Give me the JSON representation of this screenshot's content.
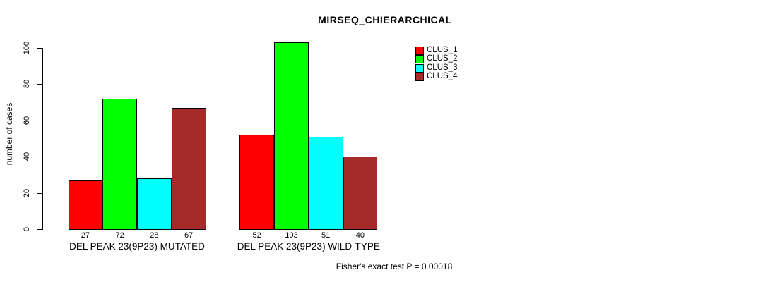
{
  "chart_data": {
    "type": "bar",
    "title": "MIRSEQ_CHIERARCHICAL",
    "ylabel": "number of cases",
    "xlabel": "",
    "ylim": [
      0,
      100
    ],
    "yticks": [
      0,
      20,
      40,
      60,
      80,
      100
    ],
    "grid": false,
    "legend_position": "top-right",
    "categories": [
      "DEL PEAK 23(9P23) MUTATED",
      "DEL PEAK 23(9P23) WILD-TYPE"
    ],
    "series": [
      {
        "name": "CLUS_1",
        "color": "#FF0000",
        "values": [
          27,
          52
        ]
      },
      {
        "name": "CLUS_2",
        "color": "#00FF00",
        "values": [
          72,
          103
        ]
      },
      {
        "name": "CLUS_3",
        "color": "#00FFFF",
        "values": [
          28,
          51
        ]
      },
      {
        "name": "CLUS_4",
        "color": "#A52A2A",
        "values": [
          67,
          40
        ]
      }
    ],
    "bar_labels": [
      [
        "27",
        "72",
        "28",
        "67"
      ],
      [
        "52",
        "103",
        "51",
        "40"
      ]
    ],
    "footnote": "Fisher's exact test P = 0.00018",
    "colors": {
      "background": "#FFFFFF",
      "axis": "#000000",
      "text": "#000000"
    }
  }
}
